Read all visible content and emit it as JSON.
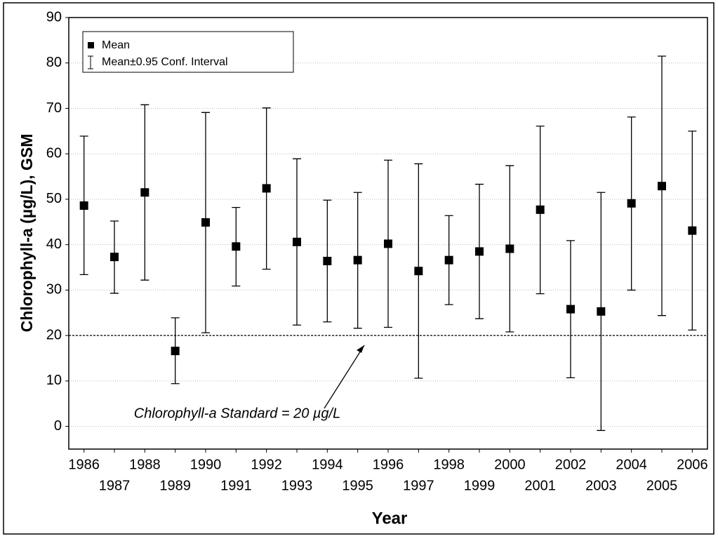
{
  "chart_data": {
    "type": "errorbar",
    "x_label": "Year",
    "y_label": "Chlorophyll-a (µg/L), GSM",
    "x": [
      1986,
      1987,
      1988,
      1989,
      1990,
      1991,
      1992,
      1993,
      1994,
      1995,
      1996,
      1997,
      1998,
      1999,
      2000,
      2001,
      2002,
      2003,
      2004,
      2005,
      2006
    ],
    "series": [
      {
        "name": "Mean",
        "color": "#000000",
        "values": [
          48.6,
          37.3,
          51.5,
          16.6,
          44.9,
          39.6,
          52.4,
          40.6,
          36.4,
          36.6,
          40.2,
          34.2,
          36.6,
          38.5,
          39.1,
          47.7,
          25.8,
          25.3,
          49.1,
          52.9,
          43.1
        ]
      }
    ],
    "interval_name": "Mean±0.95 Conf. Interval",
    "lower": [
      33.4,
      29.3,
      32.2,
      9.4,
      20.6,
      30.9,
      34.6,
      22.3,
      23.0,
      21.6,
      21.8,
      10.6,
      26.8,
      23.7,
      20.8,
      29.2,
      10.7,
      -0.9,
      30.0,
      24.4,
      21.2
    ],
    "upper": [
      63.9,
      45.2,
      70.8,
      23.9,
      69.1,
      48.2,
      70.1,
      58.9,
      49.8,
      51.5,
      58.6,
      57.8,
      46.4,
      53.3,
      57.4,
      66.1,
      40.9,
      51.5,
      68.1,
      81.5,
      65.0
    ],
    "standard": 20,
    "annotation": "Chlorophyll-a Standard = 20 µg/L",
    "xlim": [
      1985.5,
      2006.5
    ],
    "xticks": [
      1986,
      1987,
      1988,
      1989,
      1990,
      1991,
      1992,
      1993,
      1994,
      1995,
      1996,
      1997,
      1998,
      1999,
      2000,
      2001,
      2002,
      2003,
      2004,
      2005,
      2006
    ],
    "ylim": [
      -5,
      90
    ],
    "yticks": [
      0,
      10,
      20,
      30,
      40,
      50,
      60,
      70,
      80,
      90
    ],
    "grid": true
  }
}
